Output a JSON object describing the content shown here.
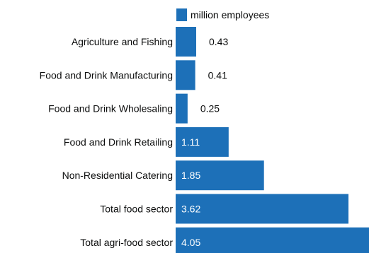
{
  "chart_data": {
    "type": "bar",
    "orientation": "horizontal",
    "categories": [
      "Agriculture and Fishing",
      "Food and Drink Manufacturing",
      "Food and Drink Wholesaling",
      "Food and Drink Retailing",
      "Non-Residential Catering",
      "Total food sector",
      "Total agri-food sector"
    ],
    "series": [
      {
        "name": "million employees",
        "values": [
          0.43,
          0.41,
          0.25,
          1.11,
          1.85,
          3.62,
          4.05
        ],
        "labels": [
          "0.43",
          "0.41",
          "0.25",
          "1.11",
          "1.85",
          "3.62",
          "4.05"
        ],
        "color": "#1d70b8"
      }
    ],
    "title": "",
    "xlabel": "",
    "ylabel": "",
    "xlim": [
      0,
      4.05
    ],
    "grid": false,
    "legend_position": "top"
  }
}
